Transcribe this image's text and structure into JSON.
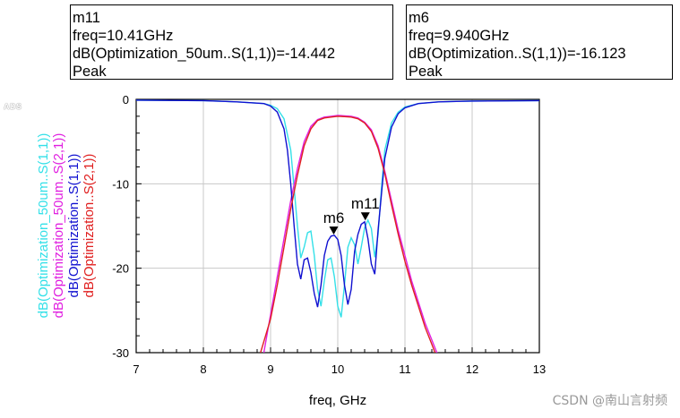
{
  "markers": [
    {
      "id": "m11",
      "name": "m11",
      "freq_text": "freq=10.41GHz",
      "value_text": "dB(Optimization_50um..S(1,1))=-14.442",
      "type_text": "Peak",
      "x": 10.41,
      "y": -14.442
    },
    {
      "id": "m6",
      "name": "m6",
      "freq_text": "freq=9.940GHz",
      "value_text": "dB(Optimization..S(1,1))=-16.123",
      "type_text": "Peak",
      "x": 9.94,
      "y": -16.123
    }
  ],
  "logo_text": "ADS",
  "watermark": "CSDN @南山言射频",
  "chart_data": {
    "type": "line",
    "title": "",
    "xlabel": "freq, GHz",
    "xlim": [
      7,
      13
    ],
    "ylim": [
      -30,
      0
    ],
    "xticks": [
      7,
      8,
      9,
      10,
      11,
      12,
      13
    ],
    "yticks": [
      0,
      -10,
      -20,
      -30
    ],
    "grid": true,
    "legend_position": "left-vertical",
    "series": [
      {
        "name": "dB(Optimization_50um..S(1,1))",
        "color": "#33e0e8",
        "x": [
          7.0,
          8.0,
          8.5,
          8.9,
          9.0,
          9.1,
          9.2,
          9.3,
          9.35,
          9.4,
          9.45,
          9.5,
          9.55,
          9.6,
          9.65,
          9.7,
          9.75,
          9.8,
          9.85,
          9.9,
          9.95,
          10.0,
          10.05,
          10.1,
          10.15,
          10.2,
          10.25,
          10.3,
          10.35,
          10.4,
          10.45,
          10.5,
          10.55,
          10.6,
          10.65,
          10.7,
          10.8,
          10.9,
          11.0,
          11.2,
          11.5,
          12.0,
          13.0
        ],
        "values": [
          -0.1,
          -0.15,
          -0.3,
          -0.5,
          -0.7,
          -1.1,
          -2.3,
          -6.0,
          -10.5,
          -15.0,
          -18.8,
          -17.5,
          -15.8,
          -15.6,
          -18.5,
          -22.5,
          -24.5,
          -21.5,
          -19.0,
          -18.8,
          -21.0,
          -24.5,
          -25.8,
          -22.0,
          -17.5,
          -16.4,
          -17.2,
          -19.5,
          -17.5,
          -15.2,
          -14.3,
          -15.3,
          -18.7,
          -16.0,
          -10.5,
          -6.0,
          -2.8,
          -1.5,
          -0.9,
          -0.5,
          -0.3,
          -0.2,
          -0.15
        ]
      },
      {
        "name": "dB(Optimization_50um..S(2,1))",
        "color": "#e020e0",
        "x": [
          8.9,
          9.0,
          9.1,
          9.2,
          9.3,
          9.4,
          9.5,
          9.6,
          9.7,
          9.8,
          9.9,
          10.0,
          10.1,
          10.2,
          10.3,
          10.4,
          10.5,
          10.6,
          10.7,
          10.8,
          10.9,
          11.0,
          11.1,
          11.2,
          11.3,
          11.4,
          11.5
        ],
        "values": [
          -30.0,
          -25.5,
          -21.0,
          -16.5,
          -12.0,
          -8.2,
          -5.0,
          -3.2,
          -2.4,
          -2.1,
          -2.0,
          -1.9,
          -1.95,
          -2.0,
          -2.2,
          -2.7,
          -3.6,
          -5.5,
          -8.5,
          -12.0,
          -15.5,
          -18.5,
          -21.5,
          -24.0,
          -26.5,
          -28.5,
          -30.5
        ]
      },
      {
        "name": "dB(Optimization..S(1,1))",
        "color": "#1010d0",
        "x": [
          7.0,
          8.0,
          8.5,
          8.9,
          9.0,
          9.1,
          9.2,
          9.25,
          9.3,
          9.35,
          9.4,
          9.45,
          9.5,
          9.55,
          9.6,
          9.65,
          9.7,
          9.75,
          9.8,
          9.85,
          9.9,
          9.95,
          10.0,
          10.05,
          10.1,
          10.15,
          10.2,
          10.25,
          10.3,
          10.35,
          10.4,
          10.45,
          10.5,
          10.55,
          10.6,
          10.7,
          10.8,
          10.9,
          11.0,
          11.2,
          11.5,
          12.0,
          13.0
        ],
        "values": [
          -0.1,
          -0.15,
          -0.3,
          -0.5,
          -0.8,
          -1.5,
          -3.5,
          -6.0,
          -10.0,
          -15.0,
          -19.5,
          -21.3,
          -19.0,
          -18.8,
          -20.5,
          -23.0,
          -24.6,
          -22.0,
          -18.5,
          -16.8,
          -16.2,
          -16.1,
          -16.6,
          -18.5,
          -22.0,
          -24.3,
          -22.5,
          -18.0,
          -16.0,
          -14.8,
          -14.5,
          -16.5,
          -19.5,
          -20.7,
          -15.5,
          -7.0,
          -3.3,
          -1.7,
          -1.0,
          -0.5,
          -0.3,
          -0.2,
          -0.15
        ]
      },
      {
        "name": "dB(Optimization..S(2,1))",
        "color": "#e02020",
        "x": [
          8.85,
          9.0,
          9.1,
          9.2,
          9.3,
          9.4,
          9.5,
          9.6,
          9.7,
          9.8,
          9.9,
          10.0,
          10.1,
          10.2,
          10.3,
          10.4,
          10.5,
          10.6,
          10.7,
          10.8,
          10.9,
          11.0,
          11.1,
          11.2,
          11.3,
          11.4,
          11.47
        ],
        "values": [
          -30.0,
          -26.0,
          -22.0,
          -17.5,
          -13.0,
          -9.0,
          -5.5,
          -3.5,
          -2.5,
          -2.2,
          -2.1,
          -2.0,
          -2.05,
          -2.1,
          -2.3,
          -2.8,
          -3.8,
          -5.8,
          -8.8,
          -12.5,
          -16.0,
          -19.2,
          -22.0,
          -24.5,
          -27.0,
          -29.0,
          -30.5
        ]
      }
    ]
  }
}
